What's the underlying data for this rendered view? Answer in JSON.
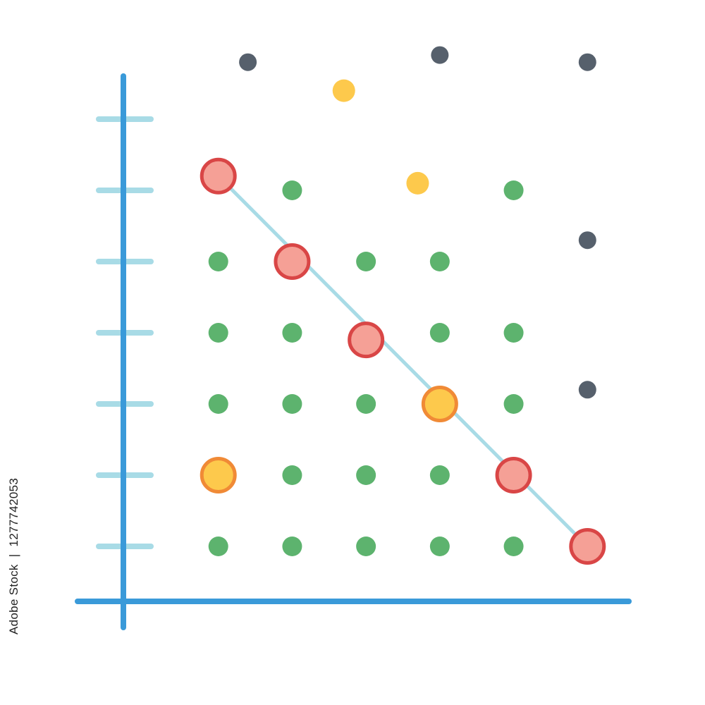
{
  "chart_data": {
    "type": "scatter",
    "title": "",
    "xlabel": "",
    "ylabel": "",
    "grid": false,
    "legend": "none",
    "xlim": [
      0,
      7
    ],
    "ylim": [
      0,
      8
    ],
    "y_ticks": [
      1,
      2,
      3,
      4,
      5,
      6,
      7
    ],
    "colors": {
      "axis": "#3a9ad9",
      "tick": "#a8dbe6",
      "trend_line": "#a8dbe6",
      "green": "#5db36e",
      "navy": "#56606c",
      "yellow": "#fdc94c",
      "yellow_ring": "#f08a36",
      "red_fill": "#f5a096",
      "red_ring": "#d94646"
    },
    "series": [
      {
        "marker": "small-green-dot",
        "color": "#5db36e",
        "points": [
          [
            1,
            1
          ],
          [
            2,
            1
          ],
          [
            3,
            1
          ],
          [
            4,
            1
          ],
          [
            5,
            1
          ],
          [
            2,
            2
          ],
          [
            3,
            2
          ],
          [
            4,
            2
          ],
          [
            1,
            3
          ],
          [
            2,
            3
          ],
          [
            3,
            3
          ],
          [
            5,
            3
          ],
          [
            1,
            4
          ],
          [
            2,
            4
          ],
          [
            4,
            4
          ],
          [
            5,
            4
          ],
          [
            1,
            5
          ],
          [
            3,
            5
          ],
          [
            4,
            5
          ],
          [
            2,
            6
          ],
          [
            5,
            6
          ]
        ]
      },
      {
        "marker": "small-navy-dot",
        "color": "#56606c",
        "points": [
          [
            1.4,
            7.8
          ],
          [
            4,
            7.9
          ],
          [
            6,
            7.8
          ],
          [
            6,
            5.3
          ],
          [
            6,
            3.2
          ]
        ]
      },
      {
        "marker": "small-yellow-dot",
        "color": "#fdc94c",
        "points": [
          [
            2.7,
            7.4
          ],
          [
            3.7,
            6.1
          ]
        ]
      },
      {
        "marker": "large-red-ring",
        "color": "#f5a096",
        "points": [
          [
            1,
            6.2
          ],
          [
            2,
            5
          ],
          [
            3,
            3.9
          ],
          [
            5,
            2
          ],
          [
            6,
            1
          ]
        ]
      },
      {
        "marker": "large-yellow-ring",
        "color": "#fdc94c",
        "points": [
          [
            4,
            3
          ],
          [
            1,
            2
          ]
        ]
      }
    ],
    "trend_line": [
      [
        1,
        6.2
      ],
      [
        6,
        1
      ]
    ]
  },
  "watermark": {
    "id": "1277742053",
    "brand": "Adobe Stock"
  }
}
